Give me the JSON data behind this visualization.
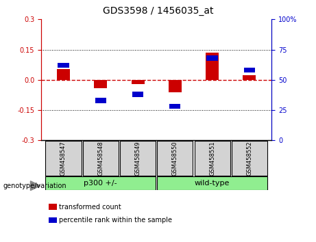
{
  "title": "GDS3598 / 1456035_at",
  "samples": [
    "GSM458547",
    "GSM458548",
    "GSM458549",
    "GSM458550",
    "GSM458551",
    "GSM458552"
  ],
  "red_values": [
    0.053,
    -0.042,
    -0.02,
    -0.062,
    0.135,
    0.022
  ],
  "blue_values_pct": [
    62,
    33,
    38,
    28,
    68,
    58
  ],
  "ylim_left": [
    -0.3,
    0.3
  ],
  "ylim_right": [
    0,
    100
  ],
  "yticks_left": [
    -0.3,
    -0.15,
    0.0,
    0.15,
    0.3
  ],
  "yticks_right": [
    0,
    25,
    50,
    75,
    100
  ],
  "group_bg_color": "#90EE90",
  "sample_bg_color": "#d3d3d3",
  "red_color": "#cc0000",
  "blue_color": "#0000cc",
  "zero_line_color": "#cc0000",
  "grid_color": "#000000",
  "bar_width": 0.35,
  "genotype_label": "genotype/variation",
  "legend_red": "transformed count",
  "legend_blue": "percentile rank within the sample",
  "group1_label": "p300 +/-",
  "group2_label": "wild-type"
}
